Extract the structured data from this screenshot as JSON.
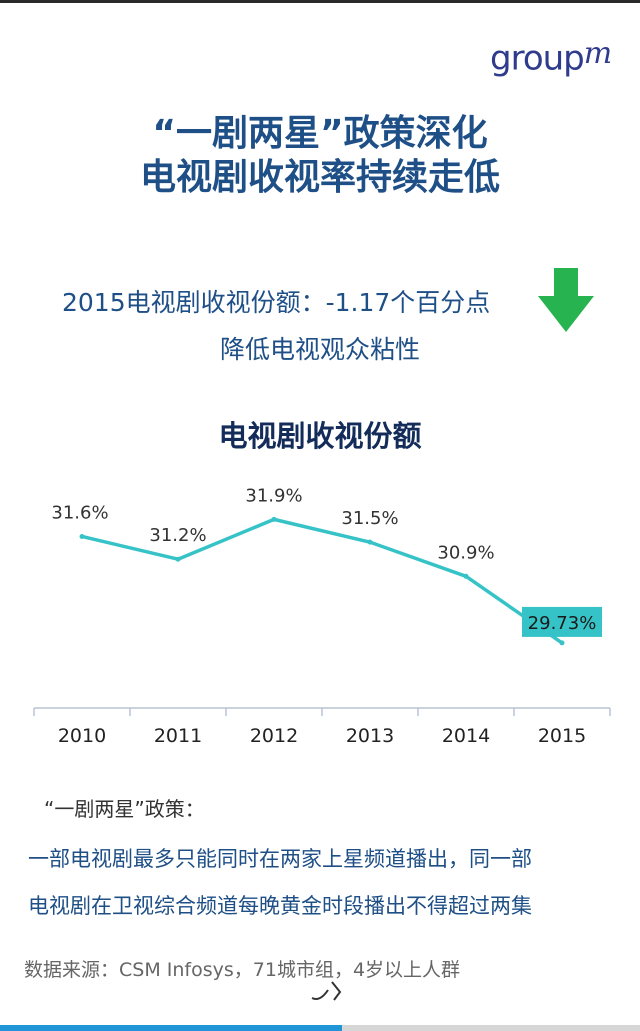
{
  "logo": {
    "text": "group",
    "sup": "m"
  },
  "title": {
    "line1": "“一剧两星”政策深化",
    "line2": "电视剧收视率持续走低"
  },
  "subtitle": {
    "line1": "2015电视剧收视份额：-1.17个百分点",
    "line2": "降低电视观众粘性"
  },
  "icons": {
    "trend": "down-arrow-icon",
    "arrow_color": "#27b34f"
  },
  "chart_data": {
    "type": "line",
    "title": "电视剧收视份额",
    "categories": [
      "2010",
      "2011",
      "2012",
      "2013",
      "2014",
      "2015"
    ],
    "series": [
      {
        "values": [
          31.6,
          31.2,
          31.9,
          31.5,
          30.9,
          29.73
        ],
        "labels": [
          "31.6%",
          "31.2%",
          "31.9%",
          "31.5%",
          "30.9%",
          "29.73%"
        ]
      }
    ],
    "ylim": [
      29.5,
      32.1
    ],
    "grid": false,
    "legend": "none",
    "line_color": "#36c3c8",
    "highlight_index": 5,
    "highlight_color": "#36c3c8"
  },
  "policy": {
    "title": "“一剧两星”政策：",
    "line1": "一部电视剧最多只能同时在两家上星频道播出，同一部",
    "line2": "电视剧在卫视综合频道每晚黄金时段播出不得超过两集"
  },
  "source": "数据来源：CSM Infosys，71城市组，4岁以上人群",
  "progress": 0.535
}
